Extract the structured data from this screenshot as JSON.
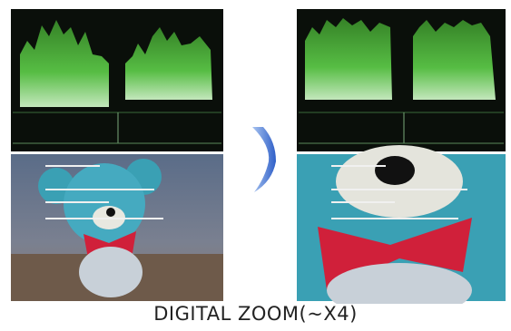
{
  "caption": "DIGITAL ZOOM(~X4)"
}
